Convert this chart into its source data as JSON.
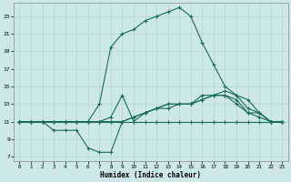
{
  "xlabel": "Humidex (Indice chaleur)",
  "background_color": "#cce8e8",
  "grid_color": "#b5d5d5",
  "line_color": "#1a6b5a",
  "xlim": [
    -0.5,
    23.5
  ],
  "ylim": [
    6.5,
    24.5
  ],
  "xticks": [
    0,
    1,
    2,
    3,
    4,
    5,
    6,
    7,
    8,
    9,
    10,
    11,
    12,
    13,
    14,
    15,
    16,
    17,
    18,
    19,
    20,
    21,
    22,
    23
  ],
  "yticks": [
    7,
    9,
    11,
    13,
    15,
    17,
    19,
    21,
    23
  ],
  "line1_x": [
    0,
    1,
    2,
    3,
    4,
    5,
    6,
    7,
    8,
    9,
    10,
    11,
    12,
    13,
    14,
    15,
    16,
    17,
    18,
    19,
    20,
    21,
    22,
    23
  ],
  "line1_y": [
    11,
    11,
    11,
    11,
    11,
    11,
    11,
    11,
    11,
    11,
    11,
    11,
    11,
    11,
    11,
    11,
    11,
    11,
    11,
    11,
    11,
    11,
    11,
    11
  ],
  "line2_x": [
    0,
    1,
    2,
    3,
    4,
    5,
    6,
    7,
    8,
    9,
    10,
    11,
    12,
    13,
    14,
    15,
    16,
    17,
    18,
    19,
    20,
    21,
    22,
    23
  ],
  "line2_y": [
    11,
    11,
    11,
    10,
    10,
    10,
    8,
    7.5,
    7.5,
    11,
    11.5,
    12,
    12.5,
    12.5,
    13,
    13,
    13.5,
    14,
    14,
    13,
    12,
    11.5,
    11,
    11
  ],
  "line3_x": [
    0,
    1,
    2,
    3,
    4,
    5,
    6,
    7,
    8,
    9,
    10,
    11,
    12,
    13,
    14,
    15,
    16,
    17,
    18,
    19,
    20,
    21,
    22,
    23
  ],
  "line3_y": [
    11,
    11,
    11,
    11,
    11,
    11,
    11,
    11,
    11,
    11,
    11.5,
    12,
    12.5,
    13,
    13,
    13,
    13.5,
    14,
    14,
    13.5,
    12,
    12,
    11,
    11
  ],
  "line4_x": [
    0,
    1,
    2,
    3,
    4,
    5,
    6,
    7,
    8,
    9,
    10,
    11,
    12,
    13,
    14,
    15,
    16,
    17,
    18,
    19,
    20,
    21,
    22,
    23
  ],
  "line4_y": [
    11,
    11,
    11,
    11,
    11,
    11,
    11,
    11,
    11.5,
    14,
    11,
    12,
    12.5,
    13,
    13,
    13,
    14,
    14,
    14.5,
    14,
    12.5,
    12,
    11,
    11
  ],
  "line5_x": [
    0,
    1,
    2,
    3,
    4,
    5,
    6,
    7,
    8,
    9,
    10,
    11,
    12,
    13,
    14,
    15,
    16,
    17,
    18,
    19,
    20,
    21,
    22,
    23
  ],
  "line5_y": [
    11,
    11,
    11,
    11,
    11,
    11,
    11,
    13,
    19.5,
    21,
    21.5,
    22.5,
    23,
    23.5,
    24,
    23,
    20,
    17.5,
    15,
    14,
    13.5,
    12,
    11,
    11
  ]
}
